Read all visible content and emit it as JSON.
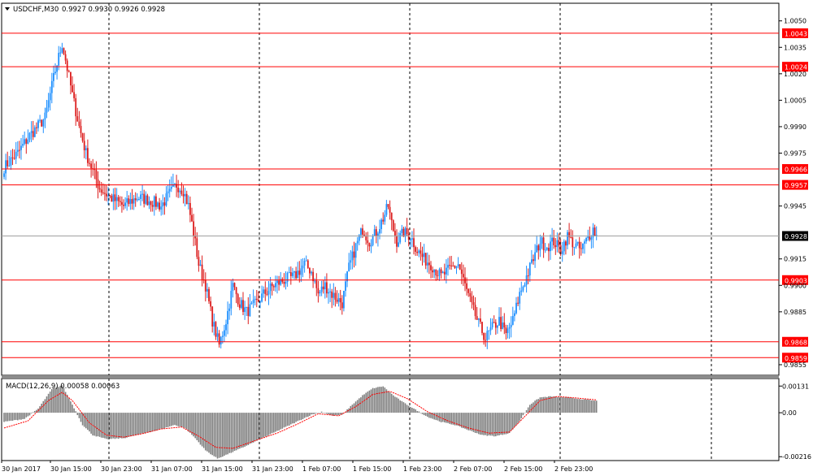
{
  "header": {
    "symbol_caption": "USDCHF,M30",
    "ohlc": "0.9927 0.9930 0.9926 0.9928",
    "macd_caption": "MACD(12,26,9) 0.00058 0.00063"
  },
  "colors": {
    "background": "#ffffff",
    "bull": "#1e90ff",
    "bear": "#dc1e1e",
    "hline": "#ff0000",
    "tag_fill": "#ff0000",
    "tag_text": "#ffffff",
    "price_tag_fill": "#000000",
    "histogram": "#808080",
    "signal": "#ff0000",
    "grid": "#000000",
    "text": "#000000"
  },
  "chart_data": [
    {
      "type": "candlestick",
      "title": "USDCHF,M30",
      "x": [
        "30 Jan 2017",
        "30 Jan 15:00",
        "30 Jan 23:00",
        "31 Jan 07:00",
        "31 Jan 15:00",
        "31 Jan 23:00",
        "1 Feb 07:00",
        "1 Feb 15:00",
        "1 Feb 23:00",
        "2 Feb 07:00",
        "2 Feb 15:00",
        "2 Feb 23:00"
      ],
      "ylim": [
        0.9849,
        1.006
      ],
      "yticks": [
        "1.0050",
        "1.0035",
        "1.0020",
        "1.0005",
        "0.9990",
        "0.9975",
        "0.9945",
        "0.9915",
        "0.9900",
        "0.9885",
        "0.9855"
      ],
      "grid": "vertical dashed",
      "current_price": "0.9928",
      "horizontal_levels": [
        {
          "label": "1.0043",
          "value": 1.0043
        },
        {
          "label": "1.0024",
          "value": 1.0024
        },
        {
          "label": "0.9966",
          "value": 0.9966
        },
        {
          "label": "0.9957",
          "value": 0.9957
        },
        {
          "label": "0.9903",
          "value": 0.9903
        },
        {
          "label": "0.9868",
          "value": 0.9868
        },
        {
          "label": "0.9859",
          "value": 0.9859
        }
      ],
      "path_anchors": [
        [
          0,
          0.9967
        ],
        [
          8,
          0.9975
        ],
        [
          15,
          0.9985
        ],
        [
          24,
          0.9995
        ],
        [
          30,
          1.0022
        ],
        [
          34,
          1.0037
        ],
        [
          36,
          1.0028
        ],
        [
          40,
          1.0008
        ],
        [
          44,
          0.999
        ],
        [
          48,
          0.9975
        ],
        [
          52,
          0.9965
        ],
        [
          56,
          0.9955
        ],
        [
          62,
          0.995
        ],
        [
          70,
          0.9945
        ],
        [
          78,
          0.995
        ],
        [
          86,
          0.9948
        ],
        [
          92,
          0.9945
        ],
        [
          97,
          0.9952
        ],
        [
          101,
          0.9957
        ],
        [
          105,
          0.9954
        ],
        [
          108,
          0.9945
        ],
        [
          111,
          0.993
        ],
        [
          114,
          0.9912
        ],
        [
          118,
          0.99
        ],
        [
          122,
          0.988
        ],
        [
          126,
          0.9866
        ],
        [
          130,
          0.988
        ],
        [
          134,
          0.99
        ],
        [
          138,
          0.989
        ],
        [
          142,
          0.9885
        ],
        [
          148,
          0.989
        ],
        [
          152,
          0.9895
        ],
        [
          158,
          0.99
        ],
        [
          164,
          0.9903
        ],
        [
          170,
          0.9905
        ],
        [
          176,
          0.9912
        ],
        [
          180,
          0.9908
        ],
        [
          184,
          0.9895
        ],
        [
          188,
          0.99
        ],
        [
          192,
          0.9895
        ],
        [
          198,
          0.989
        ],
        [
          202,
          0.991
        ],
        [
          206,
          0.9922
        ],
        [
          210,
          0.9932
        ],
        [
          214,
          0.9925
        ],
        [
          218,
          0.993
        ],
        [
          222,
          0.9938
        ],
        [
          225,
          0.9945
        ],
        [
          227,
          0.9935
        ],
        [
          230,
          0.9925
        ],
        [
          234,
          0.993
        ],
        [
          238,
          0.9928
        ],
        [
          242,
          0.992
        ],
        [
          246,
          0.9915
        ],
        [
          250,
          0.9912
        ],
        [
          256,
          0.9905
        ],
        [
          262,
          0.991
        ],
        [
          266,
          0.9912
        ],
        [
          270,
          0.99
        ],
        [
          274,
          0.9888
        ],
        [
          278,
          0.9878
        ],
        [
          282,
          0.987
        ],
        [
          286,
          0.9876
        ],
        [
          290,
          0.988
        ],
        [
          294,
          0.9872
        ],
        [
          298,
          0.988
        ],
        [
          302,
          0.9895
        ],
        [
          306,
          0.9905
        ],
        [
          310,
          0.9915
        ],
        [
          314,
          0.9925
        ],
        [
          318,
          0.9922
        ],
        [
          322,
          0.9925
        ],
        [
          326,
          0.992
        ],
        [
          330,
          0.9928
        ],
        [
          334,
          0.9923
        ],
        [
          338,
          0.992
        ],
        [
          342,
          0.9927
        ],
        [
          345,
          0.9932
        ],
        [
          347,
          0.9928
        ]
      ],
      "candle_count": 348,
      "candle_pixel_spacing": 2.1
    },
    {
      "type": "histogram+line",
      "title": "MACD(12,26,9) 0.00058 0.00063",
      "ylim": [
        -0.00235,
        0.0016
      ],
      "yticks": [
        "0.00131",
        "0.00",
        "-0.00216"
      ],
      "histogram_anchors": [
        [
          0,
          -0.00045
        ],
        [
          12,
          -0.0003
        ],
        [
          20,
          0.0002
        ],
        [
          28,
          0.00115
        ],
        [
          34,
          0.00135
        ],
        [
          40,
          0.0004
        ],
        [
          46,
          -0.0006
        ],
        [
          52,
          -0.0011
        ],
        [
          60,
          -0.0013
        ],
        [
          70,
          -0.00125
        ],
        [
          80,
          -0.00105
        ],
        [
          90,
          -0.00085
        ],
        [
          100,
          -0.0006
        ],
        [
          106,
          -0.00075
        ],
        [
          112,
          -0.00125
        ],
        [
          118,
          -0.00185
        ],
        [
          125,
          -0.00225
        ],
        [
          132,
          -0.002
        ],
        [
          140,
          -0.0017
        ],
        [
          150,
          -0.0013
        ],
        [
          160,
          -0.0009
        ],
        [
          170,
          -0.0005
        ],
        [
          180,
          -0.0001
        ],
        [
          186,
          5e-05
        ],
        [
          192,
          -0.00015
        ],
        [
          198,
          -0.0001
        ],
        [
          204,
          0.0004
        ],
        [
          210,
          0.00085
        ],
        [
          216,
          0.0012
        ],
        [
          222,
          0.0013
        ],
        [
          228,
          0.00085
        ],
        [
          234,
          0.0005
        ],
        [
          240,
          0.0002
        ],
        [
          248,
          -0.0002
        ],
        [
          256,
          -0.00045
        ],
        [
          264,
          -0.0006
        ],
        [
          272,
          -0.00085
        ],
        [
          280,
          -0.0011
        ],
        [
          288,
          -0.00115
        ],
        [
          296,
          -0.001
        ],
        [
          302,
          -0.0004
        ],
        [
          308,
          0.0004
        ],
        [
          314,
          0.00075
        ],
        [
          320,
          0.0008
        ],
        [
          330,
          0.00075
        ],
        [
          340,
          0.00065
        ],
        [
          347,
          0.00058
        ]
      ],
      "signal_anchors": [
        [
          0,
          -0.00075
        ],
        [
          14,
          -0.0004
        ],
        [
          26,
          0.0006
        ],
        [
          34,
          0.001
        ],
        [
          40,
          0.0006
        ],
        [
          50,
          -0.0005
        ],
        [
          60,
          -0.0011
        ],
        [
          70,
          -0.0012
        ],
        [
          80,
          -0.00105
        ],
        [
          92,
          -0.0008
        ],
        [
          104,
          -0.0007
        ],
        [
          114,
          -0.00115
        ],
        [
          124,
          -0.0017
        ],
        [
          134,
          -0.00175
        ],
        [
          146,
          -0.0014
        ],
        [
          160,
          -0.001
        ],
        [
          172,
          -0.00055
        ],
        [
          184,
          -5e-05
        ],
        [
          196,
          -0.00015
        ],
        [
          206,
          0.0003
        ],
        [
          216,
          0.0009
        ],
        [
          226,
          0.00105
        ],
        [
          236,
          0.0007
        ],
        [
          248,
          5e-05
        ],
        [
          260,
          -0.0004
        ],
        [
          272,
          -0.00075
        ],
        [
          284,
          -0.001
        ],
        [
          296,
          -0.00095
        ],
        [
          306,
          -0.0001
        ],
        [
          314,
          0.0006
        ],
        [
          324,
          0.0008
        ],
        [
          336,
          0.00072
        ],
        [
          347,
          0.00063
        ]
      ]
    }
  ]
}
